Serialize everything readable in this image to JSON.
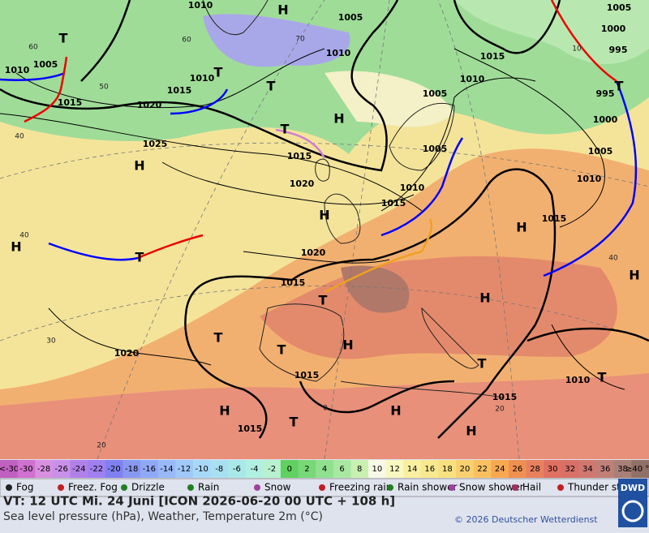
{
  "map": {
    "isobar_labels": [
      "1010",
      "1005",
      "1010",
      "1005",
      "1015",
      "1015",
      "1010",
      "1010",
      "1015",
      "1010",
      "1005",
      "1005",
      "1000",
      "995",
      "995",
      "1000",
      "1005",
      "1010",
      "1015",
      "1020",
      "1025",
      "1015",
      "1020",
      "1005",
      "1010",
      "1015",
      "1020",
      "1015",
      "1020",
      "1015",
      "1010",
      "1015",
      "1015"
    ],
    "pressure_centers": [
      "H",
      "T",
      "T",
      "T",
      "H",
      "T",
      "H",
      "H",
      "H",
      "T",
      "H",
      "H",
      "T",
      "T",
      "H",
      "T",
      "T",
      "H",
      "H",
      "T",
      "H",
      "H",
      "T",
      "T"
    ],
    "grid_labels": [
      "60",
      "50",
      "40",
      "40",
      "30",
      "20",
      "0",
      "20",
      "60",
      "70",
      "40",
      "10"
    ]
  },
  "colorscale": {
    "cells": [
      {
        "label": "<-30",
        "color": "#c060c0"
      },
      {
        "label": "-30",
        "color": "#d070d0"
      },
      {
        "label": "-28",
        "color": "#d890e0"
      },
      {
        "label": "-26",
        "color": "#c890e8"
      },
      {
        "label": "-24",
        "color": "#b080e8"
      },
      {
        "label": "-22",
        "color": "#a080f0"
      },
      {
        "label": "-20",
        "color": "#8080f0"
      },
      {
        "label": "-18",
        "color": "#8898f0"
      },
      {
        "label": "-16",
        "color": "#90a8f8"
      },
      {
        "label": "-14",
        "color": "#98b8f8"
      },
      {
        "label": "-12",
        "color": "#a0c8f8"
      },
      {
        "label": "-10",
        "color": "#a8d8f8"
      },
      {
        "label": "-8",
        "color": "#a8e0f0"
      },
      {
        "label": "-6",
        "color": "#a8e8e8"
      },
      {
        "label": "-4",
        "color": "#b0f0e0"
      },
      {
        "label": "-2",
        "color": "#b8f0d0"
      },
      {
        "label": "0",
        "color": "#60d060"
      },
      {
        "label": "2",
        "color": "#78d878"
      },
      {
        "label": "4",
        "color": "#90e090"
      },
      {
        "label": "6",
        "color": "#a8e8a0"
      },
      {
        "label": "8",
        "color": "#c8f0b0"
      },
      {
        "label": "10",
        "color": "#f8f8e8"
      },
      {
        "label": "12",
        "color": "#f8f8c0"
      },
      {
        "label": "14",
        "color": "#f8f0a0"
      },
      {
        "label": "16",
        "color": "#f8e890"
      },
      {
        "label": "18",
        "color": "#f8e080"
      },
      {
        "label": "20",
        "color": "#f8d070"
      },
      {
        "label": "22",
        "color": "#f8c060"
      },
      {
        "label": "24",
        "color": "#f8a850"
      },
      {
        "label": "26",
        "color": "#f09050"
      },
      {
        "label": "28",
        "color": "#e88060"
      },
      {
        "label": "30",
        "color": "#e07060"
      },
      {
        "label": "32",
        "color": "#d87068"
      },
      {
        "label": "34",
        "color": "#d07870"
      },
      {
        "label": "36",
        "color": "#c08078"
      },
      {
        "label": "38",
        "color": "#a88078"
      },
      {
        "label": "≥40 °C",
        "color": "#907068"
      }
    ]
  },
  "legend": [
    "Fog",
    "Freez. Fog",
    "Drizzle",
    "Rain",
    "Snow",
    "Freezing rain",
    "Rain shower",
    "Snow shower",
    "Hail",
    "Thunder storm"
  ],
  "footer": {
    "valid_time": "VT: 12 UTC Mi.  24 Juni [ICON 2026-06-20  00 UTC + 108 h]",
    "description": "Sea level pressure (hPa), Weather, Temperature 2m (°C)",
    "copyright": "© 2026 Deutscher Wetterdienst",
    "logo": "DWD"
  }
}
